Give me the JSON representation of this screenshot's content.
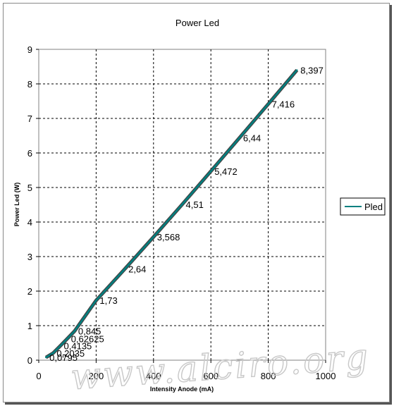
{
  "chart_data": {
    "type": "line",
    "title": "Power Led",
    "xlabel": "Intensity Anode (mA)",
    "ylabel": "Power Led (W)",
    "xlim": [
      0,
      1000
    ],
    "ylim": [
      0,
      9
    ],
    "x_ticks": [
      "0",
      "200",
      "400",
      "600",
      "800",
      "1000"
    ],
    "y_ticks": [
      "0",
      "1",
      "2",
      "3",
      "4",
      "5",
      "6",
      "7",
      "8",
      "9"
    ],
    "grid": true,
    "legend_position": "right",
    "series": [
      {
        "name": "Pled",
        "color": "#008080",
        "x": [
          25,
          50,
          75,
          100,
          125,
          200,
          300,
          400,
          500,
          600,
          700,
          800,
          900
        ],
        "y": [
          0.0795,
          0.2035,
          0.4135,
          0.62625,
          0.845,
          1.73,
          2.64,
          3.568,
          4.51,
          5.472,
          6.44,
          7.416,
          8.397
        ],
        "labels": [
          "0,0795",
          "0,2035",
          "0,4135",
          "0,62625",
          "0,845",
          "1,73",
          "2,64",
          "3,568",
          "4,51",
          "5,472",
          "6,44",
          "7,416",
          "8,397"
        ]
      }
    ]
  },
  "watermark": "www.alciro.org"
}
